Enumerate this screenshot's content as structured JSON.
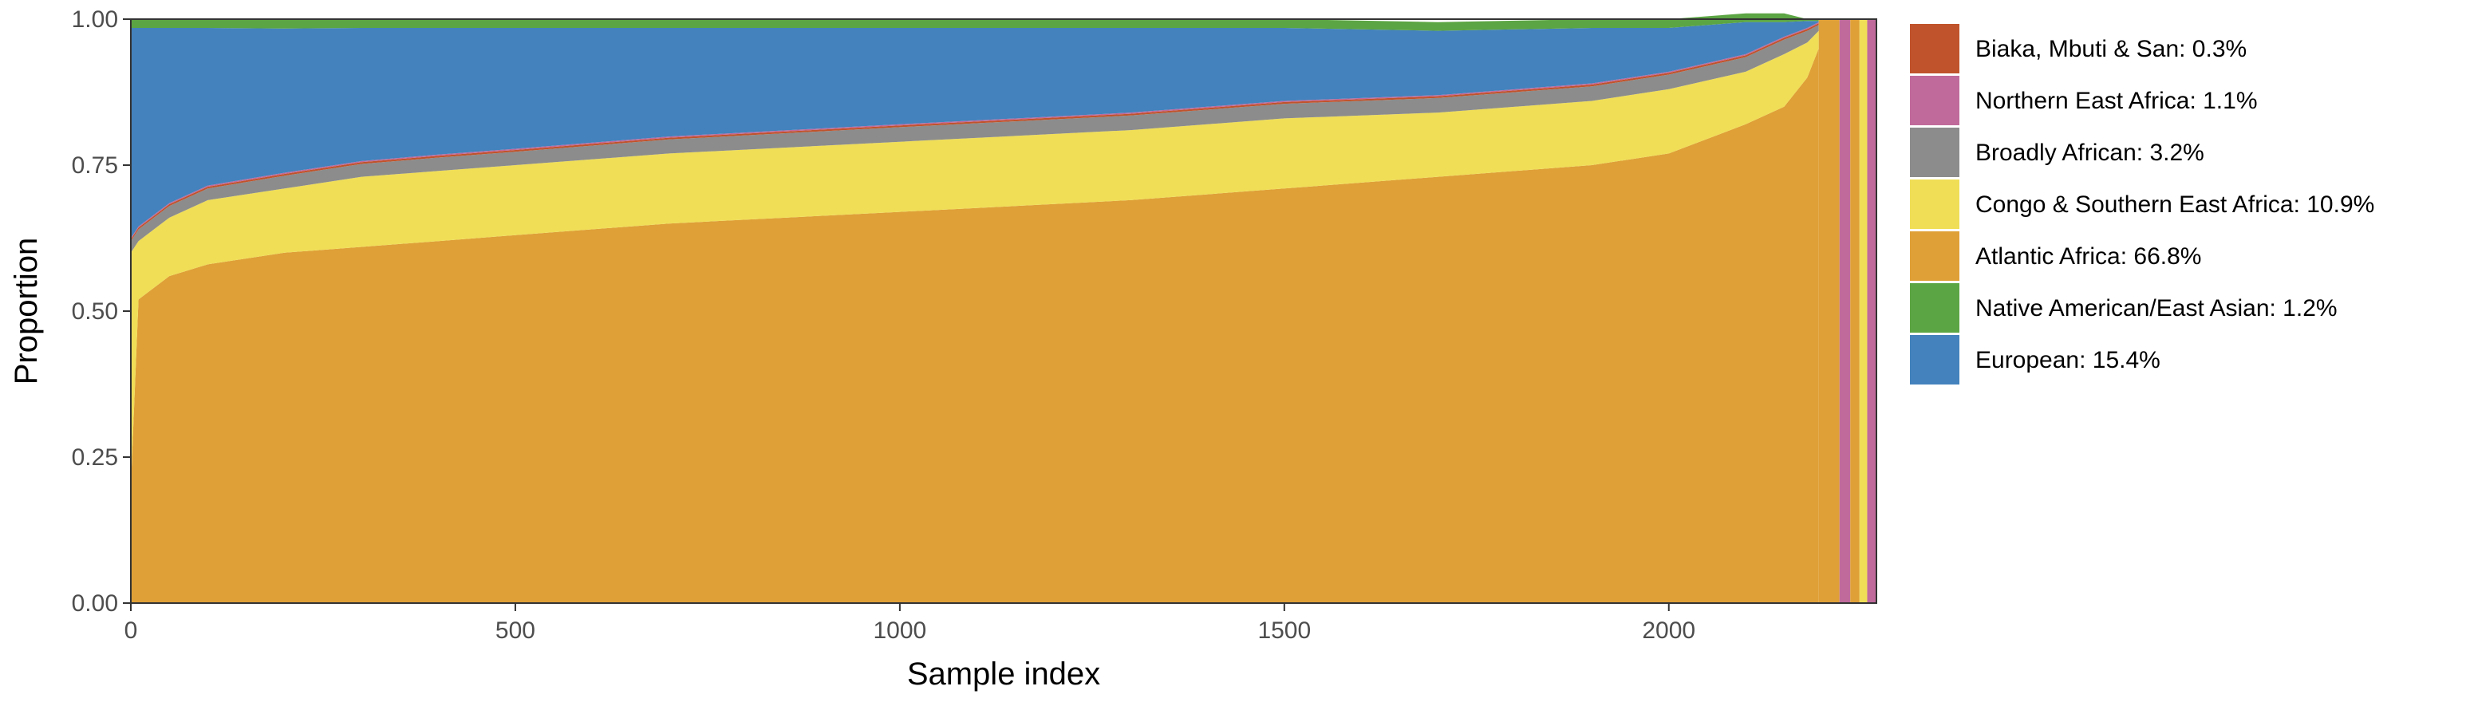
{
  "chart_data": {
    "type": "area",
    "xlabel": "Sample index",
    "ylabel": "Proportion",
    "xlim": [
      0,
      2270
    ],
    "ylim": [
      0,
      1
    ],
    "x_ticks": [
      0,
      500,
      1000,
      1500,
      2000
    ],
    "x_tick_labels": [
      "0",
      "500",
      "1000",
      "1500",
      "2000"
    ],
    "y_ticks": [
      0,
      0.25,
      0.5,
      0.75,
      1
    ],
    "y_tick_labels": [
      "0.00",
      "0.25",
      "0.50",
      "0.75",
      "1.00"
    ],
    "grid": false,
    "legend_position": "right",
    "x": [
      0,
      10,
      30,
      50,
      100,
      200,
      300,
      400,
      500,
      700,
      1000,
      1300,
      1500,
      1700,
      1900,
      2000,
      2100,
      2150,
      2180,
      2195
    ],
    "series": [
      {
        "name": "Atlantic Africa: 66.8%",
        "color": "#DFA037",
        "values": [
          0.2,
          0.52,
          0.54,
          0.56,
          0.58,
          0.6,
          0.61,
          0.62,
          0.63,
          0.65,
          0.67,
          0.69,
          0.71,
          0.73,
          0.75,
          0.77,
          0.82,
          0.85,
          0.9,
          0.95
        ]
      },
      {
        "name": "Congo & Southern East Africa: 10.9%",
        "color": "#F0DE57",
        "values": [
          0.4,
          0.1,
          0.1,
          0.1,
          0.11,
          0.11,
          0.12,
          0.12,
          0.12,
          0.12,
          0.12,
          0.12,
          0.12,
          0.11,
          0.11,
          0.11,
          0.09,
          0.09,
          0.06,
          0.03
        ]
      },
      {
        "name": "Broadly African: 3.2%",
        "color": "#8C8C8C",
        "values": [
          0.02,
          0.02,
          0.02,
          0.02,
          0.02,
          0.022,
          0.022,
          0.023,
          0.023,
          0.024,
          0.025,
          0.025,
          0.025,
          0.025,
          0.025,
          0.025,
          0.025,
          0.025,
          0.02,
          0.01
        ]
      },
      {
        "name": "Biaka, Mbuti & San: 0.3%",
        "color": "#C0532C",
        "values": [
          0.003,
          0.003,
          0.003,
          0.003,
          0.003,
          0.003,
          0.003,
          0.003,
          0.003,
          0.003,
          0.003,
          0.003,
          0.003,
          0.003,
          0.003,
          0.003,
          0.003,
          0.003,
          0.003,
          0.003
        ]
      },
      {
        "name": "Northern East Africa: 1.1%",
        "color": "#C06A9B",
        "values": [
          0.002,
          0.002,
          0.002,
          0.002,
          0.002,
          0.002,
          0.002,
          0.002,
          0.002,
          0.002,
          0.002,
          0.002,
          0.002,
          0.002,
          0.002,
          0.002,
          0.002,
          0.002,
          0.002,
          0.002
        ]
      },
      {
        "name": "European: 15.4%",
        "color": "#4382BC",
        "values": [
          0.36,
          0.34,
          0.32,
          0.3,
          0.27,
          0.247,
          0.228,
          0.217,
          0.207,
          0.186,
          0.165,
          0.145,
          0.125,
          0.11,
          0.095,
          0.075,
          0.055,
          0.025,
          0.012,
          0.002
        ]
      },
      {
        "name": "Native American/East Asian: 1.2%",
        "color": "#5CA544",
        "values": [
          0.015,
          0.015,
          0.015,
          0.015,
          0.015,
          0.016,
          0.015,
          0.015,
          0.015,
          0.015,
          0.015,
          0.015,
          0.015,
          0.015,
          0.015,
          0.015,
          0.015,
          0.015,
          0.003,
          0.002
        ]
      }
    ],
    "tail_segments": [
      {
        "x0": 2195,
        "x1": 2222,
        "color": "#DFA037"
      },
      {
        "x0": 2222,
        "x1": 2236,
        "color": "#C06A9B"
      },
      {
        "x0": 2236,
        "x1": 2248,
        "color": "#DFA037"
      },
      {
        "x0": 2248,
        "x1": 2258,
        "color": "#F0DE57"
      },
      {
        "x0": 2258,
        "x1": 2270,
        "color": "#C06A9B"
      }
    ],
    "legend": [
      {
        "label": "Biaka, Mbuti & San: 0.3%",
        "color": "#C0532C"
      },
      {
        "label": "Northern East Africa: 1.1%",
        "color": "#C06A9B"
      },
      {
        "label": "Broadly African: 3.2%",
        "color": "#8C8C8C"
      },
      {
        "label": "Congo & Southern East Africa: 10.9%",
        "color": "#F0DE57"
      },
      {
        "label": "Atlantic Africa: 66.8%",
        "color": "#DFA037"
      },
      {
        "label": "Native American/East Asian: 1.2%",
        "color": "#5CA544"
      },
      {
        "label": "European: 15.4%",
        "color": "#4382BC"
      }
    ]
  }
}
